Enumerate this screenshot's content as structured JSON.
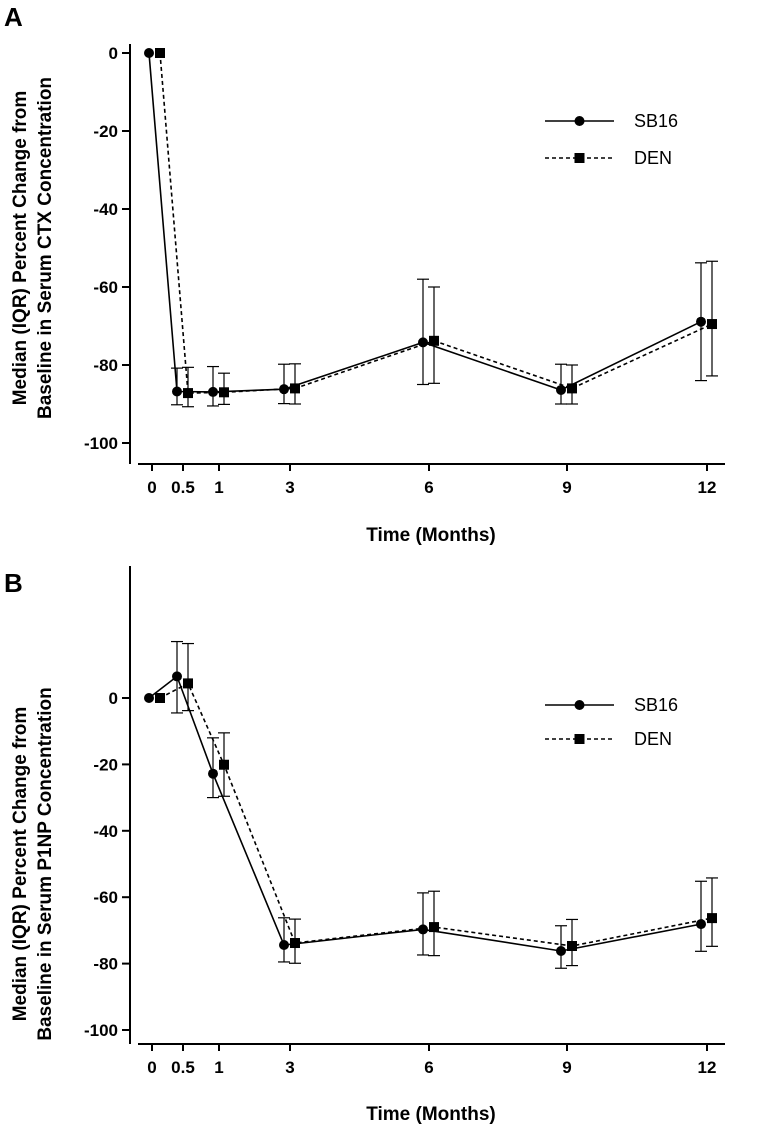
{
  "chart_data": [
    {
      "panel_label": "A",
      "type": "line",
      "xlabel": "Time (Months)",
      "ylabel": [
        "Median (IQR) Percent Change from",
        "Baseline in Serum CTX Concentration"
      ],
      "x_ticks": [
        0,
        0.5,
        1,
        3,
        6,
        9,
        12
      ],
      "y_ticks": [
        0,
        -20,
        -40,
        -60,
        -80,
        -100
      ],
      "ylim": [
        -100,
        0
      ],
      "legend_position": "top-right",
      "series": [
        {
          "name": "SB16",
          "marker": "circle",
          "line_style": "solid",
          "points": [
            {
              "x": 0,
              "y": 0
            },
            {
              "x": 0.5,
              "y": -86.8,
              "q1": -90.2,
              "q3": -80.8
            },
            {
              "x": 1,
              "y": -86.9,
              "q1": -90.5,
              "q3": -80.4
            },
            {
              "x": 3,
              "y": -86.2,
              "q1": -89.9,
              "q3": -79.8
            },
            {
              "x": 6,
              "y": -74.2,
              "q1": -85.0,
              "q3": -58.0
            },
            {
              "x": 9,
              "y": -86.4,
              "q1": -90.0,
              "q3": -79.8
            },
            {
              "x": 12,
              "y": -68.9,
              "q1": -84.0,
              "q3": -53.8
            }
          ]
        },
        {
          "name": "DEN",
          "marker": "square",
          "line_style": "dashed",
          "points": [
            {
              "x": 0,
              "y": 0
            },
            {
              "x": 0.5,
              "y": -87.2,
              "q1": -90.7,
              "q3": -80.6
            },
            {
              "x": 1,
              "y": -87.0,
              "q1": -90.1,
              "q3": -82.1
            },
            {
              "x": 3,
              "y": -86.0,
              "q1": -90.0,
              "q3": -79.7
            },
            {
              "x": 6,
              "y": -73.8,
              "q1": -84.7,
              "q3": -60.0
            },
            {
              "x": 9,
              "y": -86.0,
              "q1": -90.0,
              "q3": -80.0
            },
            {
              "x": 12,
              "y": -69.5,
              "q1": -82.8,
              "q3": -53.4
            }
          ]
        }
      ]
    },
    {
      "panel_label": "B",
      "type": "line",
      "xlabel": "Time (Months)",
      "ylabel": [
        "Median (IQR) Percent Change from",
        "Baseline in Serum P1NP Concentration"
      ],
      "x_ticks": [
        0,
        0.5,
        1,
        3,
        6,
        9,
        12
      ],
      "y_ticks": [
        0,
        -20,
        -40,
        -60,
        -80,
        -100
      ],
      "ylim": [
        -100,
        10
      ],
      "legend_position": "top-right",
      "series": [
        {
          "name": "SB16",
          "marker": "circle",
          "line_style": "solid",
          "points": [
            {
              "x": 0,
              "y": 0
            },
            {
              "x": 0.5,
              "y": 6.5,
              "q1": -4.5,
              "q3": 17.0
            },
            {
              "x": 1,
              "y": -22.8,
              "q1": -30.0,
              "q3": -12.0
            },
            {
              "x": 3,
              "y": -74.4,
              "q1": -79.5,
              "q3": -66.2
            },
            {
              "x": 6,
              "y": -69.7,
              "q1": -77.4,
              "q3": -58.7
            },
            {
              "x": 9,
              "y": -76.2,
              "q1": -81.4,
              "q3": -68.6
            },
            {
              "x": 12,
              "y": -68.1,
              "q1": -76.3,
              "q3": -55.2
            }
          ]
        },
        {
          "name": "DEN",
          "marker": "square",
          "line_style": "dashed",
          "points": [
            {
              "x": 0,
              "y": 0
            },
            {
              "x": 0.5,
              "y": 4.4,
              "q1": -3.8,
              "q3": 16.4
            },
            {
              "x": 1,
              "y": -20.1,
              "q1": -29.6,
              "q3": -10.5
            },
            {
              "x": 3,
              "y": -73.8,
              "q1": -79.9,
              "q3": -66.6
            },
            {
              "x": 6,
              "y": -69.0,
              "q1": -77.6,
              "q3": -58.2
            },
            {
              "x": 9,
              "y": -74.7,
              "q1": -80.6,
              "q3": -66.7
            },
            {
              "x": 12,
              "y": -66.3,
              "q1": -74.8,
              "q3": -54.2
            }
          ]
        }
      ]
    }
  ]
}
